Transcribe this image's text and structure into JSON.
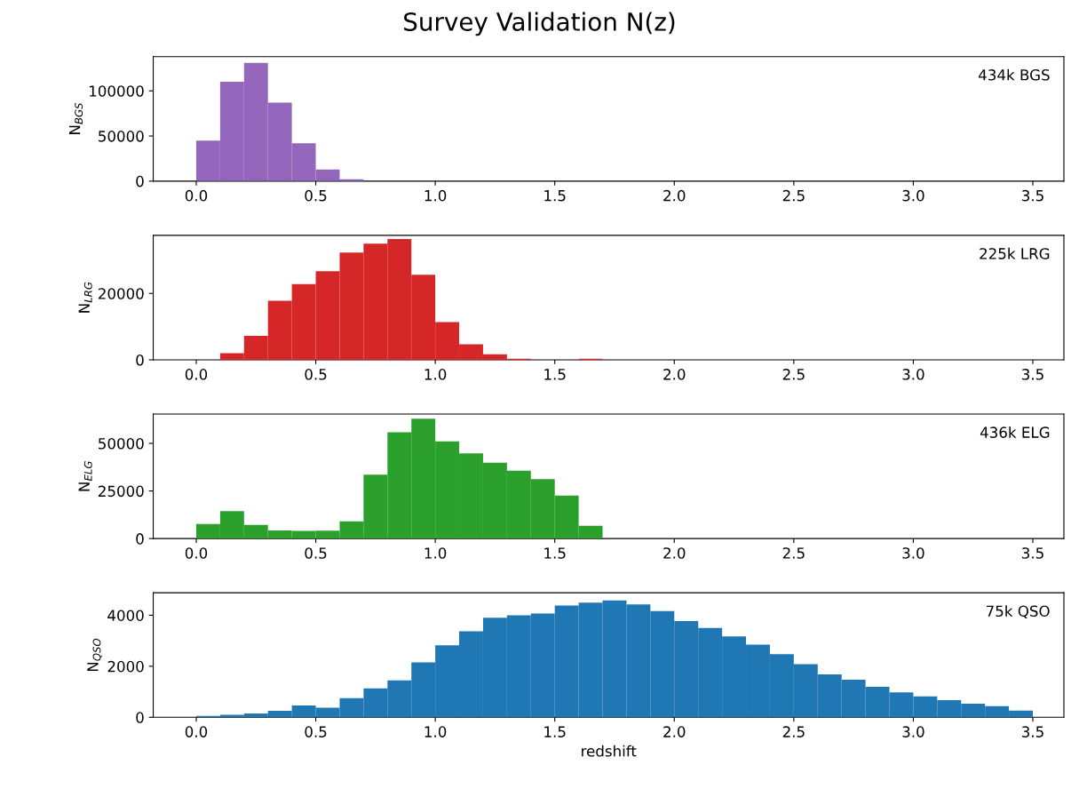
{
  "chart_data": [
    {
      "type": "histogram",
      "title": "Survey Validation N(z)",
      "ylabel": "N$_{BGS}$",
      "annotations": [
        "434k BGS"
      ],
      "color": "#9467bd",
      "bins": [
        0.0,
        0.1,
        0.2,
        0.3,
        0.4,
        0.5,
        0.6,
        0.7
      ],
      "values": [
        45000,
        110000,
        131000,
        87000,
        42000,
        13000,
        2000
      ],
      "xlim": [
        -0.18,
        3.63
      ],
      "xticks": [
        {
          "value": 0,
          "label": "0.0"
        },
        0.5,
        {
          "value": 1,
          "label": "1.0"
        },
        1.5,
        {
          "value": 2,
          "label": "2.0"
        },
        2.5,
        {
          "value": 3,
          "label": "3.0"
        },
        3.5
      ],
      "ylim": [
        0,
        138000
      ],
      "yticks": [
        0,
        50000,
        100000
      ],
      "grid": false
    },
    {
      "type": "histogram",
      "ylabel": "N$_{LRG}$",
      "annotations": [
        "225k LRG"
      ],
      "color": "#d62728",
      "bins": [
        0.1,
        0.2,
        0.3,
        0.4,
        0.5,
        0.6,
        0.7,
        0.8,
        0.9,
        1.0,
        1.1,
        1.2,
        1.3,
        1.4,
        1.5,
        1.6,
        1.7
      ],
      "values": [
        2000,
        7200,
        17800,
        22800,
        26700,
        32300,
        35000,
        36400,
        25600,
        11400,
        4700,
        1700,
        300,
        0,
        0,
        300
      ],
      "xlim": [
        -0.18,
        3.63
      ],
      "xticks": [
        {
          "value": 0,
          "label": "0.0"
        },
        0.5,
        {
          "value": 1,
          "label": "1.0"
        },
        1.5,
        {
          "value": 2,
          "label": "2.0"
        },
        2.5,
        {
          "value": 3,
          "label": "3.0"
        },
        3.5
      ],
      "ylim": [
        0,
        37500
      ],
      "yticks": [
        0,
        20000
      ],
      "grid": false
    },
    {
      "type": "histogram",
      "ylabel": "N$_{ELG}$",
      "annotations": [
        "436k ELG"
      ],
      "color": "#2ca02c",
      "bins": [
        0.0,
        0.1,
        0.2,
        0.3,
        0.4,
        0.5,
        0.6,
        0.7,
        0.8,
        0.9,
        1.0,
        1.1,
        1.2,
        1.3,
        1.4,
        1.5,
        1.6,
        1.7
      ],
      "values": [
        7700,
        14400,
        7200,
        4300,
        4000,
        4200,
        9100,
        33600,
        55800,
        63000,
        51000,
        44700,
        39900,
        35600,
        31200,
        22600,
        6700
      ],
      "xlim": [
        -0.18,
        3.63
      ],
      "xticks": [
        {
          "value": 0,
          "label": "0.0"
        },
        0.5,
        {
          "value": 1,
          "label": "1.0"
        },
        1.5,
        {
          "value": 2,
          "label": "2.0"
        },
        2.5,
        {
          "value": 3,
          "label": "3.0"
        },
        3.5
      ],
      "ylim": [
        0,
        65400
      ],
      "yticks": [
        0,
        25000,
        50000
      ],
      "grid": false
    },
    {
      "type": "histogram",
      "ylabel": "N$_{QSO}$",
      "xlabel": "redshift",
      "annotations": [
        "75k QSO"
      ],
      "color": "#1f77b4",
      "bins": [
        0.0,
        0.1,
        0.2,
        0.3,
        0.4,
        0.5,
        0.6,
        0.7,
        0.8,
        0.9,
        1.0,
        1.1,
        1.2,
        1.3,
        1.4,
        1.5,
        1.6,
        1.7,
        1.8,
        1.9,
        2.0,
        2.1,
        2.2,
        2.3,
        2.4,
        2.5,
        2.6,
        2.7,
        2.8,
        2.9,
        3.0,
        3.1,
        3.2,
        3.3,
        3.4,
        3.5
      ],
      "values": [
        50,
        100,
        150,
        250,
        460,
        380,
        750,
        1130,
        1450,
        2150,
        2820,
        3370,
        3900,
        4000,
        4070,
        4380,
        4490,
        4580,
        4420,
        4160,
        3770,
        3500,
        3170,
        2850,
        2470,
        2080,
        1680,
        1470,
        1190,
        980,
        820,
        670,
        530,
        435,
        260
      ],
      "xlim": [
        -0.18,
        3.63
      ],
      "xticks": [
        {
          "value": 0,
          "label": "0.0"
        },
        0.5,
        {
          "value": 1,
          "label": "1.0"
        },
        1.5,
        {
          "value": 2,
          "label": "2.0"
        },
        2.5,
        {
          "value": 3,
          "label": "3.0"
        },
        3.5
      ],
      "ylim": [
        0,
        4880
      ],
      "yticks": [
        0,
        2000,
        4000
      ],
      "grid": false
    }
  ]
}
